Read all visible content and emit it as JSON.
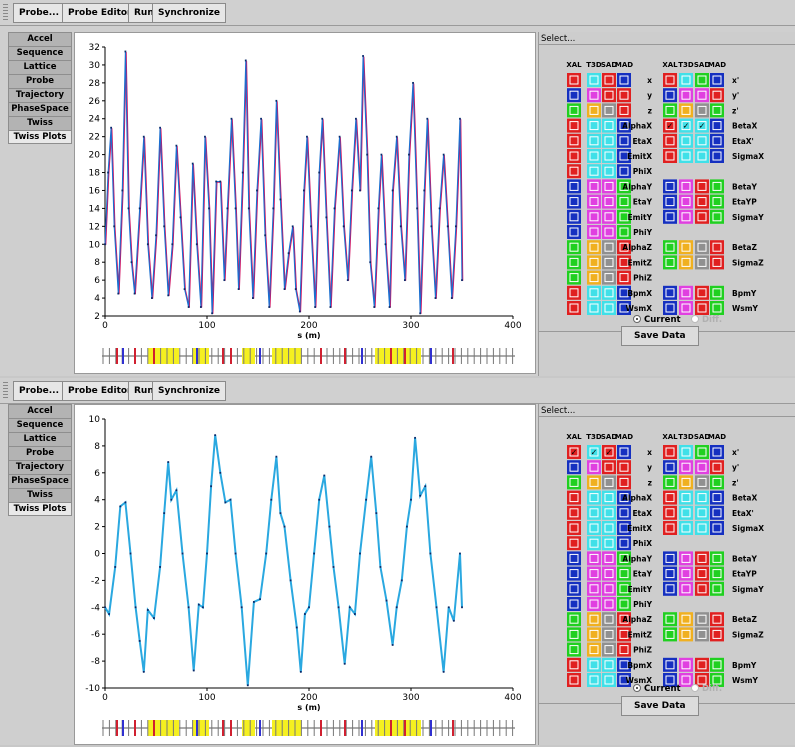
{
  "toolbar": {
    "probe": "Probe...",
    "probe_editor": "Probe Editor",
    "run": "Run",
    "synchronize": "Synchronize"
  },
  "tabs": [
    "Accel",
    "Sequence",
    "Lattice",
    "Probe",
    "Trajectory",
    "PhaseSpace",
    "Twiss",
    "Twiss Plots"
  ],
  "active_tab": "Twiss Plots",
  "panel": {
    "title": "Select...",
    "columns": [
      "XAL",
      "T3D",
      "SAD",
      "MAD"
    ],
    "left_labels": [
      "x",
      "y",
      "z",
      "AlphaX",
      "EtaX",
      "EmitX",
      "PhiX",
      "AlphaY",
      "EtaY",
      "EmitY",
      "PhiY",
      "AlphaZ",
      "EmitZ",
      "PhiZ",
      "BpmX",
      "WsmX"
    ],
    "right_labels": [
      "x'",
      "y'",
      "z'",
      "BetaX",
      "EtaX'",
      "SigmaX",
      "",
      "BetaY",
      "EtaYP",
      "SigmaY",
      "",
      "BetaZ",
      "SigmaZ",
      "",
      "BpmY",
      "WsmY"
    ],
    "radio_current": "Current",
    "radio_diff": "Diff.",
    "save_label": "Save Data"
  },
  "colors": {
    "xal": "#e02020",
    "t3d": "#40e0e8",
    "sad_x": "#e02020",
    "mad_x": "#1530c0",
    "y": "#e040e0",
    "z_t3d": "#f0b020",
    "z_sad": "#909090",
    "z_mad": "#20d020",
    "curve_top": "#1a6fd0",
    "curve_bottom": "#2aa8e0",
    "marker": "#d01060"
  },
  "charts": [
    {
      "type": "line",
      "xlabel": "s (m)",
      "xlim": [
        0,
        400
      ],
      "xticks": [
        0,
        100,
        200,
        300,
        400
      ],
      "ylim": [
        2,
        32
      ],
      "yticks": [
        2,
        4,
        6,
        8,
        10,
        12,
        14,
        16,
        18,
        20,
        22,
        24,
        26,
        28,
        30,
        32
      ],
      "checked": "BetaX",
      "series": [
        {
          "values": [
            [
              0,
              10
            ],
            [
              3,
              18
            ],
            [
              6,
              23
            ],
            [
              9,
              12
            ],
            [
              13,
              4.5
            ],
            [
              17,
              16
            ],
            [
              20,
              31.5
            ],
            [
              23,
              14
            ],
            [
              26,
              8
            ],
            [
              29,
              4.5
            ],
            [
              34,
              14
            ],
            [
              38,
              22
            ],
            [
              42,
              10
            ],
            [
              46,
              4
            ],
            [
              50,
              11
            ],
            [
              54,
              23
            ],
            [
              58,
              12
            ],
            [
              62,
              4.3
            ],
            [
              66,
              10
            ],
            [
              70,
              21
            ],
            [
              74,
              13
            ],
            [
              78,
              5
            ],
            [
              82,
              3
            ],
            [
              86,
              19
            ],
            [
              90,
              10
            ],
            [
              94,
              3
            ],
            [
              98,
              22
            ],
            [
              102,
              14
            ],
            [
              105,
              2.3
            ],
            [
              109,
              17
            ],
            [
              113,
              17
            ],
            [
              117,
              6
            ],
            [
              120,
              14
            ],
            [
              124,
              24
            ],
            [
              128,
              14
            ],
            [
              131,
              5
            ],
            [
              135,
              18
            ],
            [
              138,
              30.5
            ],
            [
              141,
              14
            ],
            [
              145,
              4
            ],
            [
              149,
              16
            ],
            [
              153,
              24
            ],
            [
              157,
              11
            ],
            [
              161,
              3
            ],
            [
              165,
              14
            ],
            [
              168,
              26
            ],
            [
              172,
              15
            ],
            [
              176,
              5
            ],
            [
              180,
              9
            ],
            [
              184,
              12
            ],
            [
              187,
              5
            ],
            [
              191,
              2.5
            ],
            [
              195,
              16
            ],
            [
              198,
              22
            ],
            [
              202,
              12
            ],
            [
              206,
              3
            ],
            [
              210,
              18
            ],
            [
              213,
              24
            ],
            [
              217,
              13
            ],
            [
              221,
              3
            ],
            [
              225,
              14
            ],
            [
              230,
              22
            ],
            [
              234,
              12
            ],
            [
              238,
              6
            ],
            [
              242,
              16
            ],
            [
              246,
              24
            ],
            [
              250,
              16
            ],
            [
              253,
              31
            ],
            [
              257,
              20
            ],
            [
              260,
              8
            ],
            [
              264,
              3
            ],
            [
              268,
              14
            ],
            [
              271,
              20
            ],
            [
              275,
              10
            ],
            [
              279,
              3
            ],
            [
              282,
              16
            ],
            [
              286,
              22
            ],
            [
              290,
              12
            ],
            [
              294,
              6
            ],
            [
              298,
              20
            ],
            [
              302,
              28
            ],
            [
              306,
              14
            ],
            [
              309,
              2.3
            ],
            [
              313,
              16
            ],
            [
              316,
              24
            ],
            [
              320,
              12
            ],
            [
              324,
              4
            ],
            [
              328,
              14
            ],
            [
              332,
              20
            ],
            [
              336,
              12
            ],
            [
              340,
              4
            ],
            [
              344,
              12
            ],
            [
              348,
              24
            ],
            [
              350,
              6
            ]
          ]
        }
      ]
    },
    {
      "type": "line",
      "xlabel": "s (m)",
      "xlim": [
        0,
        400
      ],
      "xticks": [
        0,
        100,
        200,
        300,
        400
      ],
      "ylim": [
        -10,
        10
      ],
      "yticks": [
        -10,
        -8,
        -6,
        -4,
        -2,
        0,
        2,
        4,
        6,
        8,
        10
      ],
      "checked": "x",
      "series": [
        {
          "values": [
            [
              0,
              -4
            ],
            [
              4,
              -4.5
            ],
            [
              10,
              -1
            ],
            [
              15,
              3.5
            ],
            [
              20,
              3.8
            ],
            [
              25,
              0
            ],
            [
              30,
              -4
            ],
            [
              34,
              -6.5
            ],
            [
              38,
              -8.8
            ],
            [
              42,
              -4.2
            ],
            [
              48,
              -4.8
            ],
            [
              54,
              -1
            ],
            [
              58,
              3
            ],
            [
              62,
              6.8
            ],
            [
              65,
              4
            ],
            [
              70,
              4.7
            ],
            [
              76,
              0
            ],
            [
              82,
              -4
            ],
            [
              87,
              -8.7
            ],
            [
              92,
              -3.8
            ],
            [
              96,
              -4
            ],
            [
              100,
              0
            ],
            [
              104,
              5
            ],
            [
              108,
              8.8
            ],
            [
              113,
              6
            ],
            [
              118,
              3.8
            ],
            [
              123,
              4
            ],
            [
              128,
              0
            ],
            [
              134,
              -4
            ],
            [
              140,
              -9.8
            ],
            [
              146,
              -3.6
            ],
            [
              152,
              -3.4
            ],
            [
              158,
              0
            ],
            [
              163,
              4
            ],
            [
              168,
              7.2
            ],
            [
              172,
              3
            ],
            [
              176,
              2
            ],
            [
              182,
              -2
            ],
            [
              188,
              -5.5
            ],
            [
              192,
              -8.8
            ],
            [
              196,
              -4.5
            ],
            [
              200,
              -4
            ],
            [
              205,
              0
            ],
            [
              210,
              4
            ],
            [
              215,
              5.8
            ],
            [
              220,
              2
            ],
            [
              224,
              -1
            ],
            [
              229,
              -4
            ],
            [
              235,
              -8.2
            ],
            [
              240,
              -4
            ],
            [
              245,
              -4.5
            ],
            [
              250,
              0
            ],
            [
              256,
              4
            ],
            [
              261,
              7.2
            ],
            [
              266,
              3
            ],
            [
              270,
              -1
            ],
            [
              276,
              -3.5
            ],
            [
              282,
              -6.8
            ],
            [
              286,
              -4
            ],
            [
              291,
              -2
            ],
            [
              296,
              2
            ],
            [
              300,
              4
            ],
            [
              304,
              8.6
            ],
            [
              309,
              4.3
            ],
            [
              314,
              5
            ],
            [
              319,
              0
            ],
            [
              325,
              -4
            ],
            [
              332,
              -8.8
            ],
            [
              337,
              -4
            ],
            [
              342,
              -5
            ],
            [
              348,
              0
            ],
            [
              350,
              -4
            ]
          ]
        }
      ]
    }
  ]
}
